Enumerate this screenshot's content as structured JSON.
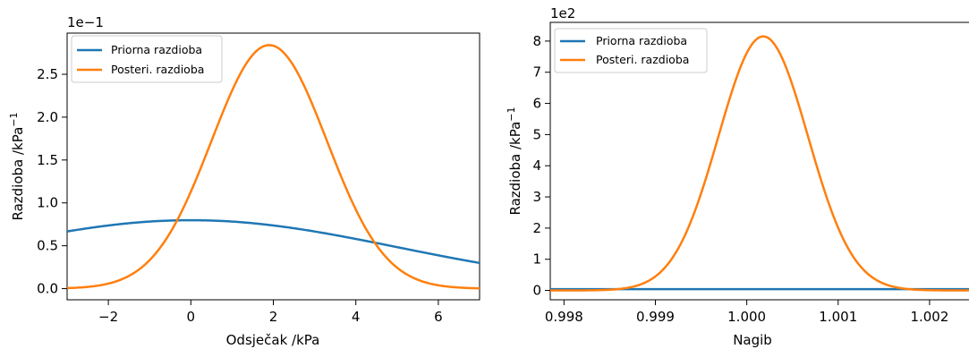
{
  "chart_data": [
    {
      "type": "line",
      "xlabel": "Odsječak /kPa",
      "ylabel": "Razdioba /kPa",
      "ylabel_sup": "−1",
      "offset_text": "1e−1",
      "xlim": [
        -3,
        7
      ],
      "ylim": [
        -0.13,
        2.98
      ],
      "xticks": [
        -2,
        0,
        2,
        4,
        6
      ],
      "xtick_labels": [
        "−2",
        "0",
        "2",
        "4",
        "6"
      ],
      "yticks": [
        0,
        0.5,
        1.0,
        1.5,
        2.0,
        2.5
      ],
      "ytick_labels": [
        "0.0",
        "0.5",
        "1.0",
        "1.5",
        "2.0",
        "2.5"
      ],
      "grid": false,
      "legend_position": "upper-left",
      "series": [
        {
          "name": "Priorna razdioba",
          "color": "#1f77b4",
          "kind": "gaussian",
          "mean": 0.0,
          "sd": 5.0,
          "peak": 0.798
        },
        {
          "name": "Posteri. razdioba",
          "color": "#ff7f0e",
          "kind": "gaussian",
          "mean": 1.9,
          "sd": 1.4,
          "peak": 2.84
        }
      ]
    },
    {
      "type": "line",
      "xlabel": "Nagib",
      "ylabel": "Razdioba /kPa",
      "ylabel_sup": "−1",
      "offset_text": "1e2",
      "xlim": [
        0.99785,
        1.0025
      ],
      "ylim": [
        -0.3,
        8.6
      ],
      "xticks": [
        0.998,
        0.999,
        1.0,
        1.001,
        1.002
      ],
      "xtick_labels": [
        "0.998",
        "0.999",
        "1.000",
        "1.001",
        "1.002"
      ],
      "yticks": [
        0,
        1,
        2,
        3,
        4,
        5,
        6,
        7,
        8
      ],
      "ytick_labels": [
        "0",
        "1",
        "2",
        "3",
        "4",
        "5",
        "6",
        "7",
        "8"
      ],
      "grid": false,
      "legend_position": "upper-left",
      "series": [
        {
          "name": "Priorna razdioba",
          "color": "#1f77b4",
          "kind": "gaussian",
          "mean": 1.0,
          "sd": 0.1,
          "peak": 0.04
        },
        {
          "name": "Posteri. razdioba",
          "color": "#ff7f0e",
          "kind": "gaussian",
          "mean": 1.00018,
          "sd": 0.00049,
          "peak": 8.15
        }
      ]
    }
  ]
}
